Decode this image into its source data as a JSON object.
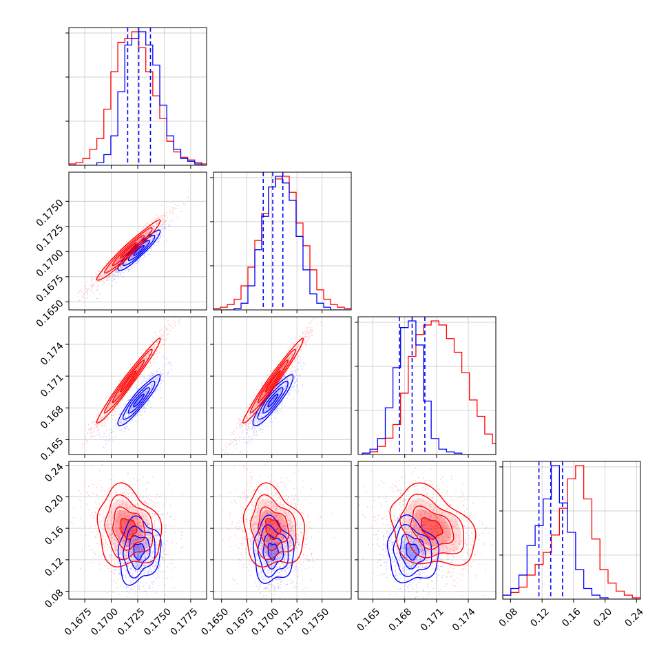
{
  "chart_data": {
    "type": "corner",
    "colors": {
      "a": "#0000ff",
      "b": "#ff0000"
    },
    "grid": true,
    "n_params": 4,
    "axes": [
      {
        "range": [
          0.166,
          0.179
        ],
        "ticks": [
          0.1675,
          0.17,
          0.1725,
          0.175,
          0.1775
        ],
        "labels": [
          "0.1675",
          "0.1700",
          "0.1725",
          "0.1750",
          "0.1775"
        ]
      },
      {
        "range": [
          0.1642,
          0.1779
        ],
        "ticks": [
          0.165,
          0.1675,
          0.17,
          0.1725,
          0.175
        ],
        "labels": [
          "0.1650",
          "0.1675",
          "0.1700",
          "0.1725",
          "0.1750"
        ]
      },
      {
        "range": [
          0.1636,
          0.1766
        ],
        "ticks": [
          0.165,
          0.168,
          0.171,
          0.174
        ],
        "labels": [
          "0.165",
          "0.168",
          "0.171",
          "0.174"
        ]
      },
      {
        "range": [
          0.07,
          0.245
        ],
        "ticks": [
          0.08,
          0.12,
          0.16,
          0.2,
          0.24
        ],
        "labels": [
          "0.08",
          "0.12",
          "0.16",
          "0.20",
          "0.24"
        ]
      }
    ],
    "diagonal": [
      {
        "bins": [
          0.166,
          0.1792
        ],
        "hist_a": [
          0,
          0,
          0,
          0,
          2,
          8,
          22,
          55,
          90,
          95,
          100,
          90,
          75,
          45,
          22,
          12,
          5,
          3,
          1,
          0
        ],
        "hist_b": [
          1,
          2,
          5,
          12,
          20,
          42,
          70,
          92,
          95,
          100,
          88,
          70,
          52,
          35,
          18,
          10,
          6,
          4,
          2,
          1
        ],
        "quantiles": [
          0.17155,
          0.1726,
          0.1737
        ]
      },
      {
        "bins": [
          0.1642,
          0.1779
        ],
        "hist_a": [
          0,
          0,
          0,
          1,
          5,
          18,
          45,
          70,
          92,
          100,
          95,
          82,
          55,
          30,
          12,
          5,
          2,
          0,
          0,
          0
        ],
        "hist_b": [
          1,
          2,
          4,
          8,
          18,
          32,
          52,
          72,
          92,
          98,
          100,
          88,
          65,
          48,
          30,
          15,
          8,
          4,
          2,
          1
        ],
        "quantiles": [
          0.16915,
          0.1701,
          0.1711
        ]
      },
      {
        "bins": [
          0.164,
          0.177
        ],
        "hist_a": [
          1,
          4,
          12,
          35,
          65,
          95,
          100,
          82,
          40,
          12,
          4,
          2,
          1,
          0,
          0,
          0,
          0,
          0
        ],
        "hist_b": [
          1,
          2,
          6,
          12,
          22,
          45,
          72,
          88,
          95,
          98,
          95,
          85,
          75,
          60,
          40,
          28,
          15,
          8
        ],
        "quantiles": [
          0.1675,
          0.1687,
          0.1699
        ]
      },
      {
        "bins": [
          0.07,
          0.245
        ],
        "hist_a": [
          3,
          8,
          18,
          40,
          55,
          75,
          100,
          72,
          50,
          22,
          8,
          3,
          1,
          0,
          0,
          0,
          0
        ],
        "hist_b": [
          3,
          5,
          9,
          18,
          26,
          35,
          48,
          68,
          90,
          100,
          75,
          45,
          22,
          12,
          6,
          3,
          1
        ],
        "quantiles": [
          0.116,
          0.131,
          0.146
        ]
      }
    ],
    "pairs": [
      {
        "row": 1,
        "col": 0,
        "a": {
          "mean": [
            0.1726,
            0.1701
          ],
          "sd": [
            0.001,
            0.001
          ],
          "rho": 0.93
        },
        "b": {
          "mean": [
            0.1716,
            0.1701
          ],
          "sd": [
            0.0015,
            0.0015
          ],
          "rho": 0.97
        }
      },
      {
        "row": 2,
        "col": 0,
        "a": {
          "mean": [
            0.1726,
            0.1687
          ],
          "sd": [
            0.001,
            0.0012
          ],
          "rho": 0.92
        },
        "b": {
          "mean": [
            0.1716,
            0.1705
          ],
          "sd": [
            0.0015,
            0.002
          ],
          "rho": 0.98
        }
      },
      {
        "row": 2,
        "col": 1,
        "a": {
          "mean": [
            0.1701,
            0.1687
          ],
          "sd": [
            0.001,
            0.0012
          ],
          "rho": 0.9
        },
        "b": {
          "mean": [
            0.1701,
            0.1705
          ],
          "sd": [
            0.0015,
            0.002
          ],
          "rho": 0.98
        }
      },
      {
        "row": 3,
        "col": 0,
        "a": {
          "mean": [
            0.1726,
            0.131
          ],
          "sd": [
            0.001,
            0.02
          ],
          "rho": 0.1
        },
        "b": {
          "mean": [
            0.1716,
            0.16
          ],
          "sd": [
            0.0015,
            0.025
          ],
          "rho": -0.15
        }
      },
      {
        "row": 3,
        "col": 1,
        "a": {
          "mean": [
            0.1701,
            0.131
          ],
          "sd": [
            0.001,
            0.02
          ],
          "rho": -0.05
        },
        "b": {
          "mean": [
            0.1701,
            0.16
          ],
          "sd": [
            0.0015,
            0.025
          ],
          "rho": -0.15
        }
      },
      {
        "row": 3,
        "col": 2,
        "a": {
          "mean": [
            0.1687,
            0.131
          ],
          "sd": [
            0.0012,
            0.02
          ],
          "rho": -0.1
        },
        "b": {
          "mean": [
            0.1705,
            0.16
          ],
          "sd": [
            0.002,
            0.025
          ],
          "rho": -0.3
        }
      }
    ]
  }
}
